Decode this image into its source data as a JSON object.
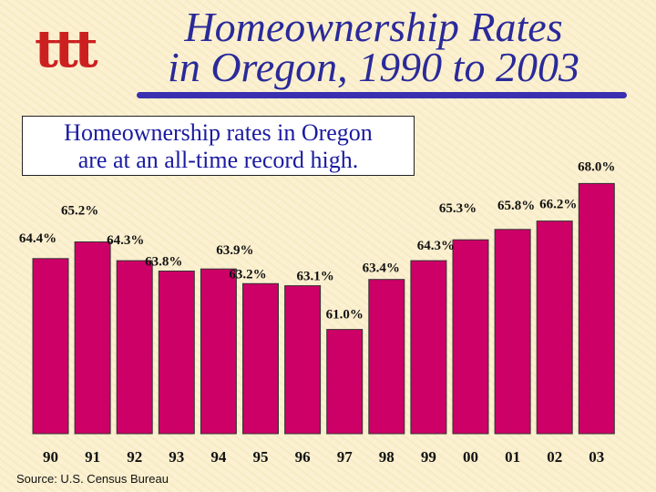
{
  "logo": {
    "glyph": "ttt",
    "color": "#cc2020"
  },
  "title": {
    "line1": "Homeownership Rates",
    "line2": "in Oregon, 1990 to 2003"
  },
  "callout": {
    "line1": "Homeownership rates in Oregon",
    "line2": "are at an all-time record high."
  },
  "source": "Source: U.S. Census Bureau",
  "chart_data": {
    "type": "bar",
    "categories": [
      "90",
      "91",
      "92",
      "93",
      "94",
      "95",
      "96",
      "97",
      "98",
      "99",
      "00",
      "01",
      "02",
      "03"
    ],
    "values": [
      64.4,
      65.2,
      64.3,
      63.8,
      63.9,
      63.2,
      63.1,
      61.0,
      63.4,
      64.3,
      65.3,
      65.8,
      66.2,
      68.0
    ],
    "value_labels": [
      "64.4%",
      "65.2%",
      "64.3%",
      "63.8%",
      "63.9%",
      "63.2%",
      "63.1%",
      "61.0%",
      "63.4%",
      "64.3%",
      "65.3%",
      "65.8%",
      "66.2%",
      "68.0%"
    ],
    "unit": "%",
    "ylim": [
      56,
      68.5
    ],
    "bar_color": "#cc0066",
    "grid": false,
    "legend": "none"
  }
}
